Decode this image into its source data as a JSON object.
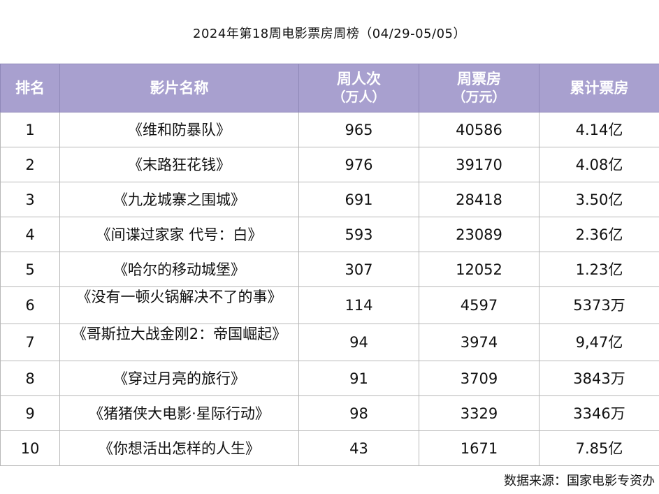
{
  "chart_data": {
    "type": "table",
    "title": "2024年第18周电影票房周榜（04/29-05/05）",
    "columns": [
      "排名",
      "影片名称",
      "周人次",
      "周票房",
      "累计票房"
    ],
    "column_units": {
      "周人次": "（万人）",
      "周票房": "（万元）"
    },
    "rows": [
      {
        "rank": "1",
        "film": "《维和防暴队》",
        "weekly_admissions": "965",
        "weekly_box": "40586",
        "total_box": "4.14亿"
      },
      {
        "rank": "2",
        "film": "《末路狂花钱》",
        "weekly_admissions": "976",
        "weekly_box": "39170",
        "total_box": "4.08亿"
      },
      {
        "rank": "3",
        "film": "《九龙城寨之围城》",
        "weekly_admissions": "691",
        "weekly_box": "28418",
        "total_box": "3.50亿"
      },
      {
        "rank": "4",
        "film": "《间谍过家家 代号：白》",
        "weekly_admissions": "593",
        "weekly_box": "23089",
        "total_box": "2.36亿"
      },
      {
        "rank": "5",
        "film": "《哈尔的移动城堡》",
        "weekly_admissions": "307",
        "weekly_box": "12052",
        "total_box": "1.23亿"
      },
      {
        "rank": "6",
        "film": "《没有一顿火锅解决不了的事》",
        "weekly_admissions": "114",
        "weekly_box": "4597",
        "total_box": "5373万"
      },
      {
        "rank": "7",
        "film": "《哥斯拉大战金刚2：帝国崛起》",
        "weekly_admissions": "94",
        "weekly_box": "3974",
        "total_box": "9,47亿"
      },
      {
        "rank": "8",
        "film": "《穿过月亮的旅行》",
        "weekly_admissions": "91",
        "weekly_box": "3709",
        "total_box": "3843万"
      },
      {
        "rank": "9",
        "film": "《猪猪侠大电影·星际行动》",
        "weekly_admissions": "98",
        "weekly_box": "3329",
        "total_box": "3346万"
      },
      {
        "rank": "10",
        "film": "《你想活出怎样的人生》",
        "weekly_admissions": "43",
        "weekly_box": "1671",
        "total_box": "7.85亿"
      }
    ],
    "source": "数据来源：国家电影专资办",
    "header_color": "#a8a0cf"
  }
}
